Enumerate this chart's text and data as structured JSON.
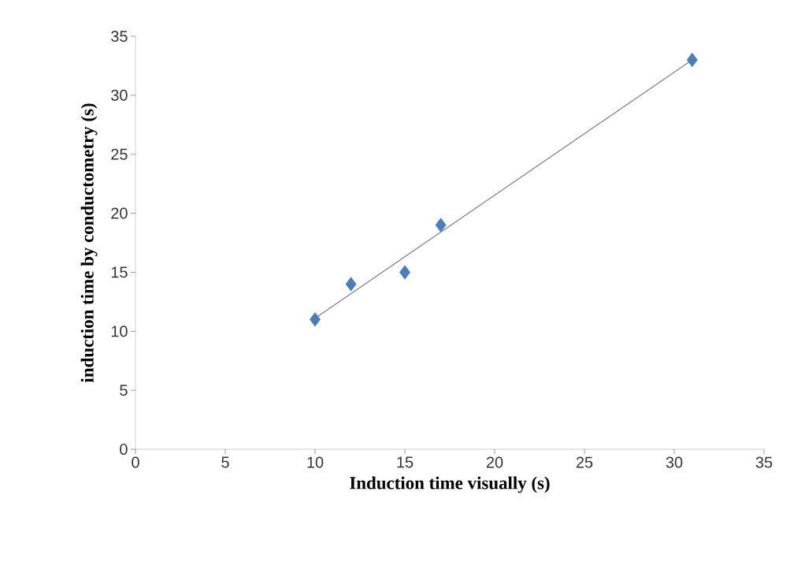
{
  "chart_data": {
    "type": "scatter",
    "xlabel": "Induction time visually (s)",
    "ylabel": "induction time by conductometry (s)",
    "grid": false,
    "xlim": [
      0,
      35
    ],
    "ylim": [
      0,
      35
    ],
    "xticks": [
      0,
      5,
      10,
      15,
      20,
      25,
      30,
      35
    ],
    "yticks": [
      0,
      5,
      10,
      15,
      20,
      25,
      30,
      35
    ],
    "series": [
      {
        "color": "#4a7ebb",
        "marker": "diamond",
        "x": [
          10,
          12,
          15,
          17,
          31
        ],
        "values": [
          11,
          14,
          15,
          19,
          33
        ]
      },
      {
        "type": "line",
        "marker": "none",
        "color": "#7f7f7f",
        "x": [
          10,
          31
        ],
        "values": [
          11.1,
          33
        ]
      }
    ]
  }
}
